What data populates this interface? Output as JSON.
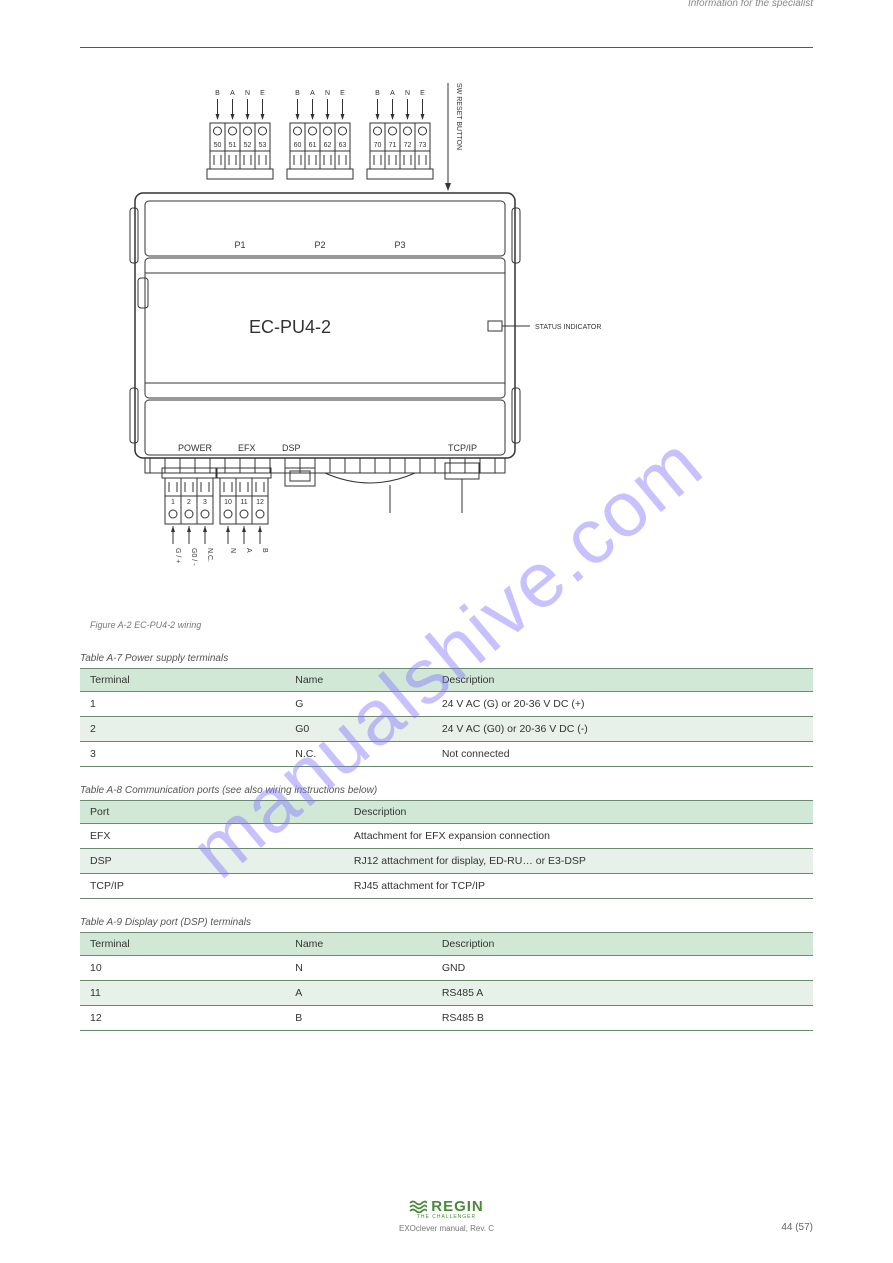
{
  "header": {
    "section": "Information for the specialist"
  },
  "watermark": "manualshive.com",
  "diagram": {
    "terminals_top": [
      {
        "bane": [
          "B",
          "A",
          "N",
          "E"
        ],
        "nums": [
          "50",
          "51",
          "52",
          "53"
        ],
        "port": "P1"
      },
      {
        "bane": [
          "B",
          "A",
          "N",
          "E"
        ],
        "nums": [
          "60",
          "61",
          "62",
          "63"
        ],
        "port": "P2"
      },
      {
        "bane": [
          "B",
          "A",
          "N",
          "E"
        ],
        "nums": [
          "70",
          "71",
          "72",
          "73"
        ],
        "port": "P3"
      }
    ],
    "sw_reset_label": "SW RESET BUTTON",
    "device_name": "EC-PU4-2",
    "status_label": "STATUS INDICATOR",
    "bottom_labels": [
      "POWER",
      "EFX",
      "DSP",
      "TCP/IP"
    ],
    "terminals_bottom": [
      {
        "nums": [
          "1",
          "2",
          "3"
        ],
        "pins": [
          "G / +",
          "G0 / -",
          "N.C."
        ]
      },
      {
        "nums": [
          "10",
          "11",
          "12"
        ],
        "pins": [
          "N",
          "A",
          "B"
        ]
      }
    ],
    "fig_caption": "Figure A-2 EC-PU4-2 wiring"
  },
  "table1": {
    "caption": "Table A-7 Power supply terminals",
    "headers": [
      "Terminal",
      "Name",
      "Description"
    ],
    "rows": [
      [
        "1",
        "G",
        "24 V AC (G) or 20-36 V DC (+)"
      ],
      [
        "2",
        "G0",
        "24 V AC (G0) or 20-36 V DC (-)"
      ],
      [
        "3",
        "N.C.",
        "Not connected"
      ]
    ],
    "col_widths": [
      "28%",
      "20%",
      "52%"
    ]
  },
  "table2": {
    "caption": "Table A-8 Communication ports (see also wiring instructions below)",
    "headers": [
      "Port",
      "Description"
    ],
    "rows": [
      [
        "EFX",
        "Attachment for EFX expansion connection"
      ],
      [
        "DSP",
        "RJ12 attachment for display, ED-RU… or E3-DSP"
      ],
      [
        "TCP/IP",
        "RJ45 attachment for TCP/IP"
      ]
    ],
    "col_widths": [
      "36%",
      "64%"
    ]
  },
  "table3": {
    "caption": "Table A-9 Display port (DSP) terminals",
    "headers": [
      "Terminal",
      "Name",
      "Description"
    ],
    "rows": [
      [
        "10",
        "N",
        "GND"
      ],
      [
        "11",
        "A",
        "RS485 A"
      ],
      [
        "12",
        "B",
        "RS485 B"
      ]
    ],
    "col_widths": [
      "28%",
      "20%",
      "52%"
    ]
  },
  "footer": {
    "brand": "REGIN",
    "tag": "THE CHALLENGER",
    "doc": "EXOclever manual, Rev. C",
    "page": "44 (57)"
  },
  "colors": {
    "table_header_bg": "#d2e8d6",
    "table_alt_bg": "#e8f0ea",
    "table_border": "#6a8a70",
    "brand_green": "#4a8a3a",
    "watermark_color": "rgba(130,120,255,0.45)"
  }
}
